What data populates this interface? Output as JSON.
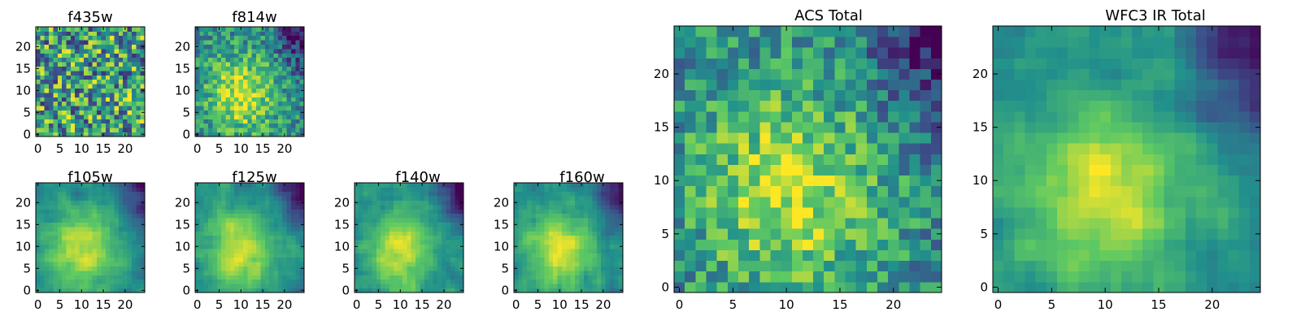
{
  "figure": {
    "colormap": [
      "#440154",
      "#3b528b",
      "#21918c",
      "#5ec962",
      "#fde725"
    ]
  },
  "chart_data": [
    {
      "type": "heatmap",
      "title": "f435w",
      "grid_size": 25,
      "xlim": [
        -0.5,
        24.5
      ],
      "ylim": [
        -0.5,
        24.5
      ],
      "xticks": [
        0,
        5,
        10,
        15,
        20
      ],
      "yticks": [
        0,
        5,
        10,
        15,
        20
      ],
      "pattern": "noisy",
      "seed": 11
    },
    {
      "type": "heatmap",
      "title": "f814w",
      "grid_size": 25,
      "xlim": [
        -0.5,
        24.5
      ],
      "ylim": [
        -0.5,
        24.5
      ],
      "xticks": [
        0,
        5,
        10,
        15,
        20
      ],
      "yticks": [
        0,
        5,
        10,
        15,
        20
      ],
      "pattern": "noisy-blob",
      "seed": 23
    },
    {
      "type": "heatmap",
      "title": "f105w",
      "grid_size": 25,
      "xlim": [
        -0.5,
        24.5
      ],
      "ylim": [
        -0.5,
        24.5
      ],
      "xticks": [
        0,
        5,
        10,
        15,
        20
      ],
      "yticks": [
        0,
        5,
        10,
        15,
        20
      ],
      "pattern": "smooth-blob",
      "seed": 37
    },
    {
      "type": "heatmap",
      "title": "f125w",
      "grid_size": 25,
      "xlim": [
        -0.5,
        24.5
      ],
      "ylim": [
        -0.5,
        24.5
      ],
      "xticks": [
        0,
        5,
        10,
        15,
        20
      ],
      "yticks": [
        0,
        5,
        10,
        15,
        20
      ],
      "pattern": "smooth-blob",
      "seed": 41
    },
    {
      "type": "heatmap",
      "title": "f140w",
      "grid_size": 25,
      "xlim": [
        -0.5,
        24.5
      ],
      "ylim": [
        -0.5,
        24.5
      ],
      "xticks": [
        0,
        5,
        10,
        15,
        20
      ],
      "yticks": [
        0,
        5,
        10,
        15,
        20
      ],
      "pattern": "smooth-blob",
      "seed": 53
    },
    {
      "type": "heatmap",
      "title": "f160w",
      "grid_size": 25,
      "xlim": [
        -0.5,
        24.5
      ],
      "ylim": [
        -0.5,
        24.5
      ],
      "xticks": [
        0,
        5,
        10,
        15,
        20
      ],
      "yticks": [
        0,
        5,
        10,
        15,
        20
      ],
      "pattern": "smooth-blob",
      "seed": 67
    },
    {
      "type": "heatmap",
      "title": "ACS Total",
      "grid_size": 25,
      "xlim": [
        -0.5,
        24.5
      ],
      "ylim": [
        -0.5,
        24.5
      ],
      "xticks": [
        0,
        5,
        10,
        15,
        20
      ],
      "yticks": [
        0,
        5,
        10,
        15,
        20
      ],
      "pattern": "noisy-blob",
      "seed": 79
    },
    {
      "type": "heatmap",
      "title": "WFC3 IR Total",
      "grid_size": 25,
      "xlim": [
        -0.5,
        24.5
      ],
      "ylim": [
        -0.5,
        24.5
      ],
      "xticks": [
        0,
        5,
        10,
        15,
        20
      ],
      "yticks": [
        0,
        5,
        10,
        15,
        20
      ],
      "pattern": "smooth-blob",
      "seed": 97
    }
  ]
}
